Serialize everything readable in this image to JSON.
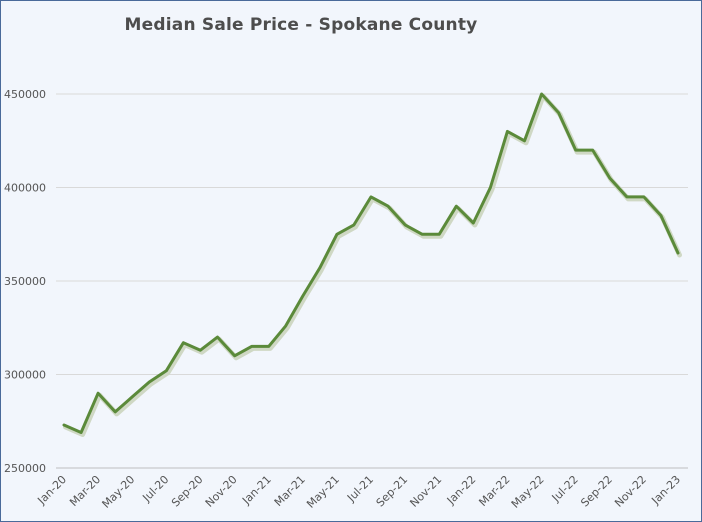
{
  "chart_data": {
    "type": "line",
    "title": "Median Sale Price - Spokane County",
    "xlabel": "",
    "ylabel": "",
    "ylim": [
      250000,
      450000
    ],
    "y_ticks": [
      "250000",
      "300000",
      "350000",
      "400000",
      "450000"
    ],
    "x_tick_labels": [
      "Jan-20",
      "Mar-20",
      "May-20",
      "Jul-20",
      "Sep-20",
      "Nov-20",
      "Jan-21",
      "Mar-21",
      "May-21",
      "Jul-21",
      "Sep-21",
      "Nov-21",
      "Jan-22",
      "Mar-22",
      "May-22",
      "Jul-22",
      "Sep-22",
      "Nov-22",
      "Jan-23"
    ],
    "x": [
      "Jan-20",
      "Feb-20",
      "Mar-20",
      "Apr-20",
      "May-20",
      "Jun-20",
      "Jul-20",
      "Aug-20",
      "Sep-20",
      "Oct-20",
      "Nov-20",
      "Dec-20",
      "Jan-21",
      "Feb-21",
      "Mar-21",
      "Apr-21",
      "May-21",
      "Jun-21",
      "Jul-21",
      "Aug-21",
      "Sep-21",
      "Oct-21",
      "Nov-21",
      "Dec-21",
      "Jan-22",
      "Feb-22",
      "Mar-22",
      "Apr-22",
      "May-22",
      "Jun-22",
      "Jul-22",
      "Aug-22",
      "Sep-22",
      "Oct-22",
      "Nov-22",
      "Dec-22",
      "Jan-23"
    ],
    "series": [
      {
        "values": [
          273000,
          269000,
          290000,
          280000,
          288000,
          296000,
          302000,
          317000,
          313000,
          320000,
          310000,
          315000,
          315000,
          326000,
          342000,
          357000,
          375000,
          380000,
          395000,
          390000,
          380000,
          375000,
          375000,
          390000,
          381000,
          400000,
          430000,
          425000,
          450000,
          440000,
          420000,
          420000,
          405000,
          395000,
          395000,
          385000,
          365000
        ]
      }
    ],
    "grid": true,
    "legend": "none",
    "line_color": "#5b8a3a"
  }
}
